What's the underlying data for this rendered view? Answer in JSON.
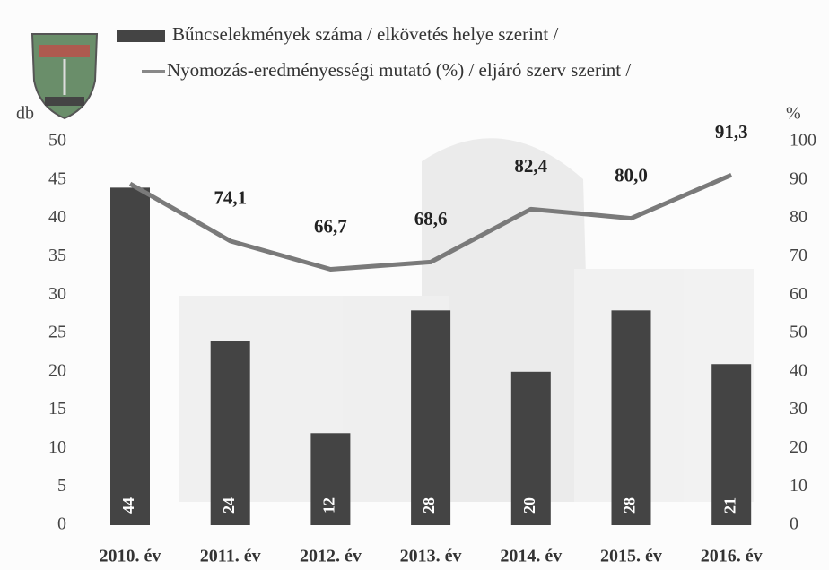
{
  "chart_data": {
    "type": "bar-line",
    "ylabel": "db",
    "y2label": "%",
    "categories": [
      "2010. év",
      "2011. év",
      "2012. év",
      "2013. év",
      "2014. év",
      "2015. év",
      "2016. év"
    ],
    "series": [
      {
        "name": "Bűncselekmények száma / elkövetés helye szerint /",
        "type": "bar",
        "color": "#444444",
        "values": [
          44,
          24,
          12,
          28,
          20,
          28,
          21
        ]
      },
      {
        "name": "Nyomozás-eredményességi mutató (%) / eljáró szerv szerint /",
        "type": "line",
        "axis": "y2",
        "color": "#7a7a7a",
        "values": [
          89,
          74.1,
          66.7,
          68.6,
          82.4,
          80.0,
          91.3
        ],
        "value_labels": [
          null,
          "74,1",
          "66,7",
          "68,6",
          "82,4",
          "80,0",
          "91,3"
        ]
      }
    ],
    "ylim": [
      0,
      50
    ],
    "yticks": [
      0,
      5,
      10,
      15,
      20,
      25,
      30,
      35,
      40,
      45,
      50
    ],
    "y2lim": [
      0,
      100
    ],
    "y2ticks": [
      0,
      10,
      20,
      30,
      40,
      50,
      60,
      70,
      80,
      90,
      100
    ]
  }
}
